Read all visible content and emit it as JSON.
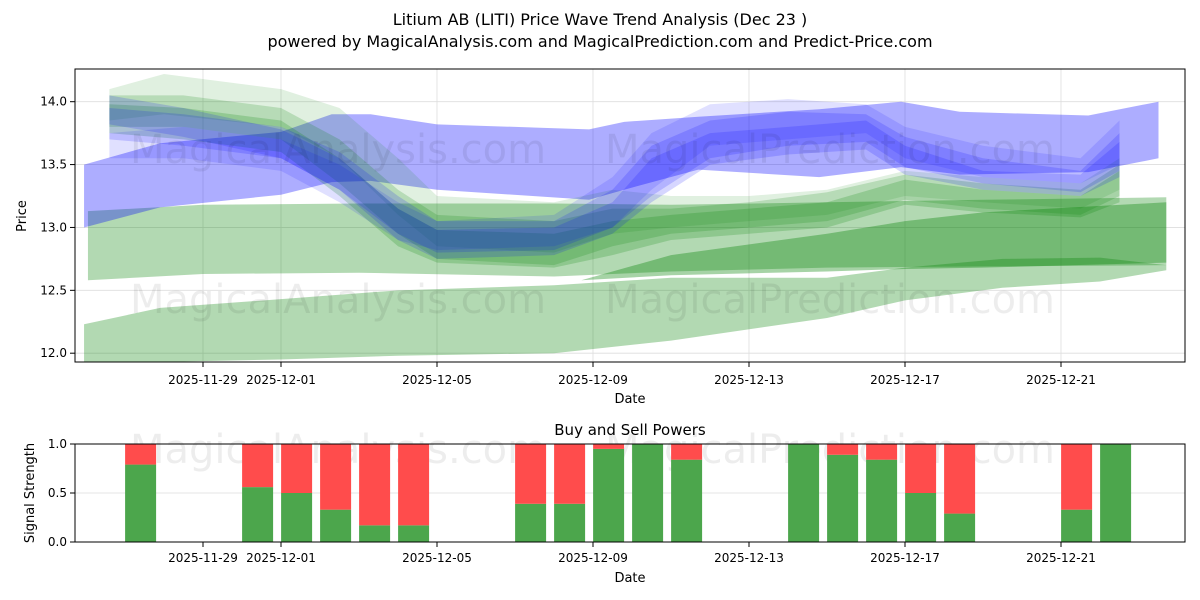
{
  "title": "Litium AB (LITI) Price Wave Trend Analysis (Dec 23 )",
  "subtitle": "powered by MagicalAnalysis.com and MagicalPrediction.com and Predict-Price.com",
  "watermarks": [
    "MagicalAnalysis.com",
    "MagicalPrediction.com"
  ],
  "chart_data": [
    {
      "type": "area",
      "title": "",
      "xlabel": "Date",
      "ylabel": "Price",
      "ylim": [
        11.93,
        14.26
      ],
      "xlim": [
        "2025-11-25T17:00",
        "2025-12-24T05:00"
      ],
      "grid": true,
      "x_origin": "2025-12-01",
      "x_unit": "days since x_origin",
      "xticks": [
        {
          "day": -2,
          "label": "2025-11-29"
        },
        {
          "day": 0,
          "label": "2025-12-01"
        },
        {
          "day": 4,
          "label": "2025-12-05"
        },
        {
          "day": 8,
          "label": "2025-12-09"
        },
        {
          "day": 12,
          "label": "2025-12-13"
        },
        {
          "day": 16,
          "label": "2025-12-17"
        },
        {
          "day": 20,
          "label": "2025-12-21"
        }
      ],
      "yticks": [
        12.0,
        12.5,
        13.0,
        13.5,
        14.0
      ],
      "colors": {
        "blue": "#0000ff",
        "green": "#008000"
      },
      "bands": [
        {
          "color": "green",
          "opacity": 0.3,
          "points": [
            [
              -5.05,
              12.23,
              11.93
            ],
            [
              -3.1,
              12.36,
              11.93
            ],
            [
              0,
              12.43,
              11.95
            ],
            [
              3,
              12.5,
              11.98
            ],
            [
              7,
              12.54,
              12.0
            ],
            [
              10,
              12.6,
              12.1
            ],
            [
              14,
              12.6,
              12.28
            ],
            [
              16,
              12.68,
              12.42
            ],
            [
              18.5,
              12.75,
              12.52
            ],
            [
              21,
              12.76,
              12.57
            ],
            [
              22.7,
              12.7,
              12.66
            ]
          ]
        },
        {
          "color": "green",
          "opacity": 0.3,
          "points": [
            [
              -4.95,
              13.13,
              12.58
            ],
            [
              -2,
              13.18,
              12.63
            ],
            [
              2,
              13.19,
              12.64
            ],
            [
              7,
              13.19,
              12.61
            ],
            [
              10,
              13.18,
              12.65
            ],
            [
              14,
              13.2,
              12.68
            ],
            [
              18,
              13.22,
              12.69
            ],
            [
              22.7,
              13.24,
              12.7
            ]
          ]
        },
        {
          "color": "green",
          "opacity": 0.35,
          "points": [
            [
              7.7,
              12.58,
              12.58
            ],
            [
              10,
              12.78,
              12.62
            ],
            [
              14,
              12.95,
              12.65
            ],
            [
              16,
              13.05,
              12.67
            ],
            [
              18,
              13.12,
              12.68
            ],
            [
              22.7,
              13.2,
              12.72
            ]
          ]
        },
        {
          "color": "blue",
          "opacity": 0.32,
          "points": [
            [
              -5.05,
              13.5,
              13.0
            ],
            [
              -3.1,
              13.67,
              13.16
            ],
            [
              0,
              13.76,
              13.26
            ],
            [
              1.3,
              13.9,
              13.36
            ],
            [
              2.3,
              13.9,
              13.37
            ],
            [
              4,
              13.82,
              13.3
            ],
            [
              7.9,
              13.78,
              13.22
            ],
            [
              8.8,
              13.84,
              13.3
            ],
            [
              10.7,
              13.88,
              13.46
            ],
            [
              13.8,
              13.94,
              13.4
            ],
            [
              15.9,
              14.0,
              13.48
            ],
            [
              17.4,
              13.92,
              13.42
            ],
            [
              20.7,
              13.89,
              13.44
            ],
            [
              22.5,
              14.0,
              13.55
            ]
          ]
        },
        {
          "color": "green",
          "opacity": 0.12,
          "points": [
            [
              -4.4,
              14.1,
              13.85
            ],
            [
              -3,
              14.22,
              13.9
            ],
            [
              0,
              14.1,
              13.8
            ],
            [
              1.5,
              13.95,
              13.55
            ],
            [
              3,
              13.55,
              13.1
            ],
            [
              4,
              13.25,
              12.85
            ],
            [
              7,
              13.2,
              12.8
            ],
            [
              8.5,
              13.3,
              12.95
            ],
            [
              10,
              13.25,
              13.0
            ],
            [
              12,
              13.25,
              13.05
            ],
            [
              14,
              13.3,
              13.1
            ],
            [
              16,
              13.45,
              13.25
            ],
            [
              18,
              13.4,
              13.2
            ],
            [
              20.5,
              13.35,
              13.15
            ],
            [
              21.5,
              13.55,
              13.3
            ]
          ]
        },
        {
          "color": "green",
          "opacity": 0.18,
          "points": [
            [
              -4.4,
              14.05,
              13.8
            ],
            [
              -2.5,
              14.05,
              13.8
            ],
            [
              0,
              13.95,
              13.7
            ],
            [
              1.5,
              13.7,
              13.35
            ],
            [
              3,
              13.3,
              12.95
            ],
            [
              4,
              13.1,
              12.75
            ],
            [
              7,
              13.05,
              12.7
            ],
            [
              8.5,
              13.15,
              12.85
            ],
            [
              10,
              13.15,
              12.95
            ],
            [
              12,
              13.2,
              13.0
            ],
            [
              14,
              13.28,
              13.05
            ],
            [
              16,
              13.42,
              13.22
            ],
            [
              18,
              13.35,
              13.15
            ],
            [
              20.5,
              13.3,
              13.1
            ],
            [
              21.5,
              13.5,
              13.25
            ]
          ]
        },
        {
          "color": "green",
          "opacity": 0.2,
          "points": [
            [
              -4.4,
              13.98,
              13.75
            ],
            [
              -2.5,
              13.95,
              13.7
            ],
            [
              0,
              13.85,
              13.6
            ],
            [
              1.5,
              13.55,
              13.25
            ],
            [
              3,
              13.15,
              12.85
            ],
            [
              4,
              12.98,
              12.72
            ],
            [
              7,
              12.95,
              12.68
            ],
            [
              8.5,
              13.05,
              12.78
            ],
            [
              10,
              13.1,
              12.9
            ],
            [
              12,
              13.15,
              12.95
            ],
            [
              14,
              13.2,
              13.0
            ],
            [
              16,
              13.38,
              13.18
            ],
            [
              18,
              13.3,
              13.12
            ],
            [
              20.5,
              13.25,
              13.08
            ],
            [
              21.5,
              13.45,
              13.2
            ]
          ]
        },
        {
          "color": "blue",
          "opacity": 0.12,
          "points": [
            [
              -4.4,
              13.75,
              13.55
            ],
            [
              -2.5,
              13.8,
              13.55
            ],
            [
              0,
              13.7,
              13.45
            ],
            [
              1.5,
              13.5,
              13.2
            ],
            [
              3,
              13.2,
              12.9
            ],
            [
              4,
              13.05,
              12.82
            ],
            [
              7,
              13.1,
              12.85
            ],
            [
              8.5,
              13.4,
              13.0
            ],
            [
              9.5,
              13.75,
              13.3
            ],
            [
              11,
              13.98,
              13.65
            ],
            [
              13,
              14.02,
              13.7
            ],
            [
              15,
              13.98,
              13.75
            ],
            [
              16,
              13.8,
              13.55
            ],
            [
              18,
              13.65,
              13.4
            ],
            [
              20.5,
              13.55,
              13.35
            ],
            [
              21.5,
              13.85,
              13.5
            ]
          ]
        },
        {
          "color": "blue",
          "opacity": 0.16,
          "points": [
            [
              -4.4,
              13.95,
              13.7
            ],
            [
              -2.5,
              13.9,
              13.65
            ],
            [
              0,
              13.8,
              13.55
            ],
            [
              1.5,
              13.6,
              13.3
            ],
            [
              3,
              13.25,
              12.95
            ],
            [
              4,
              13.05,
              12.8
            ],
            [
              7,
              13.05,
              12.82
            ],
            [
              8.5,
              13.3,
              13.0
            ],
            [
              9.5,
              13.65,
              13.25
            ],
            [
              11,
              13.85,
              13.55
            ],
            [
              13,
              13.92,
              13.65
            ],
            [
              15,
              13.9,
              13.68
            ],
            [
              16,
              13.72,
              13.48
            ],
            [
              18,
              13.55,
              13.35
            ],
            [
              20.5,
              13.45,
              13.28
            ],
            [
              21.5,
              13.75,
              13.45
            ]
          ]
        },
        {
          "color": "blue",
          "opacity": 0.16,
          "points": [
            [
              -4.4,
              14.05,
              13.82
            ],
            [
              -2.5,
              13.95,
              13.72
            ],
            [
              0,
              13.78,
              13.55
            ],
            [
              1.5,
              13.55,
              13.3
            ],
            [
              3,
              13.15,
              12.9
            ],
            [
              4,
              12.98,
              12.75
            ],
            [
              7,
              13.0,
              12.78
            ],
            [
              8.5,
              13.2,
              12.95
            ],
            [
              9.5,
              13.55,
              13.2
            ],
            [
              11,
              13.75,
              13.5
            ],
            [
              13,
              13.8,
              13.58
            ],
            [
              15,
              13.85,
              13.62
            ],
            [
              16,
              13.65,
              13.42
            ],
            [
              18,
              13.45,
              13.3
            ],
            [
              20.5,
              13.42,
              13.25
            ],
            [
              21.5,
              13.68,
              13.4
            ]
          ]
        }
      ]
    },
    {
      "type": "bar",
      "title": "Buy and Sell Powers",
      "xlabel": "Date",
      "ylabel": "Signal Strength",
      "ylim": [
        0,
        1
      ],
      "yticks": [
        {
          "v": 0,
          "label": "0.0"
        },
        {
          "v": 0.5,
          "label": "0.5"
        },
        {
          "v": 1,
          "label": "1.0"
        }
      ],
      "colors": {
        "buy": "#4ca64c",
        "sell": "#ff4c4c"
      },
      "categories": [
        "2025-11-28",
        "2025-12-01",
        "2025-12-02",
        "2025-12-03",
        "2025-12-04",
        "2025-12-05",
        "2025-12-08",
        "2025-12-09",
        "2025-12-10",
        "2025-12-11",
        "2025-12-12",
        "2025-12-15",
        "2025-12-16",
        "2025-12-17",
        "2025-12-18",
        "2025-12-19",
        "2025-12-22",
        "2025-12-23"
      ],
      "days": [
        -3,
        0,
        1,
        2,
        3,
        4,
        7,
        8,
        9,
        10,
        11,
        14,
        15,
        16,
        17,
        18,
        21,
        22
      ],
      "series": [
        {
          "name": "Buy",
          "values": [
            0.79,
            0.56,
            0.5,
            0.33,
            0.17,
            0.17,
            0.39,
            0.39,
            0.95,
            1.0,
            0.84,
            1.0,
            0.89,
            0.84,
            0.5,
            0.29,
            0.33,
            1.0
          ]
        },
        {
          "name": "Sell",
          "values": [
            0.21,
            0.44,
            0.5,
            0.67,
            0.83,
            0.83,
            0.61,
            0.61,
            0.05,
            0.0,
            0.16,
            0.0,
            0.11,
            0.16,
            0.5,
            0.71,
            0.67,
            0.0
          ]
        }
      ]
    }
  ]
}
